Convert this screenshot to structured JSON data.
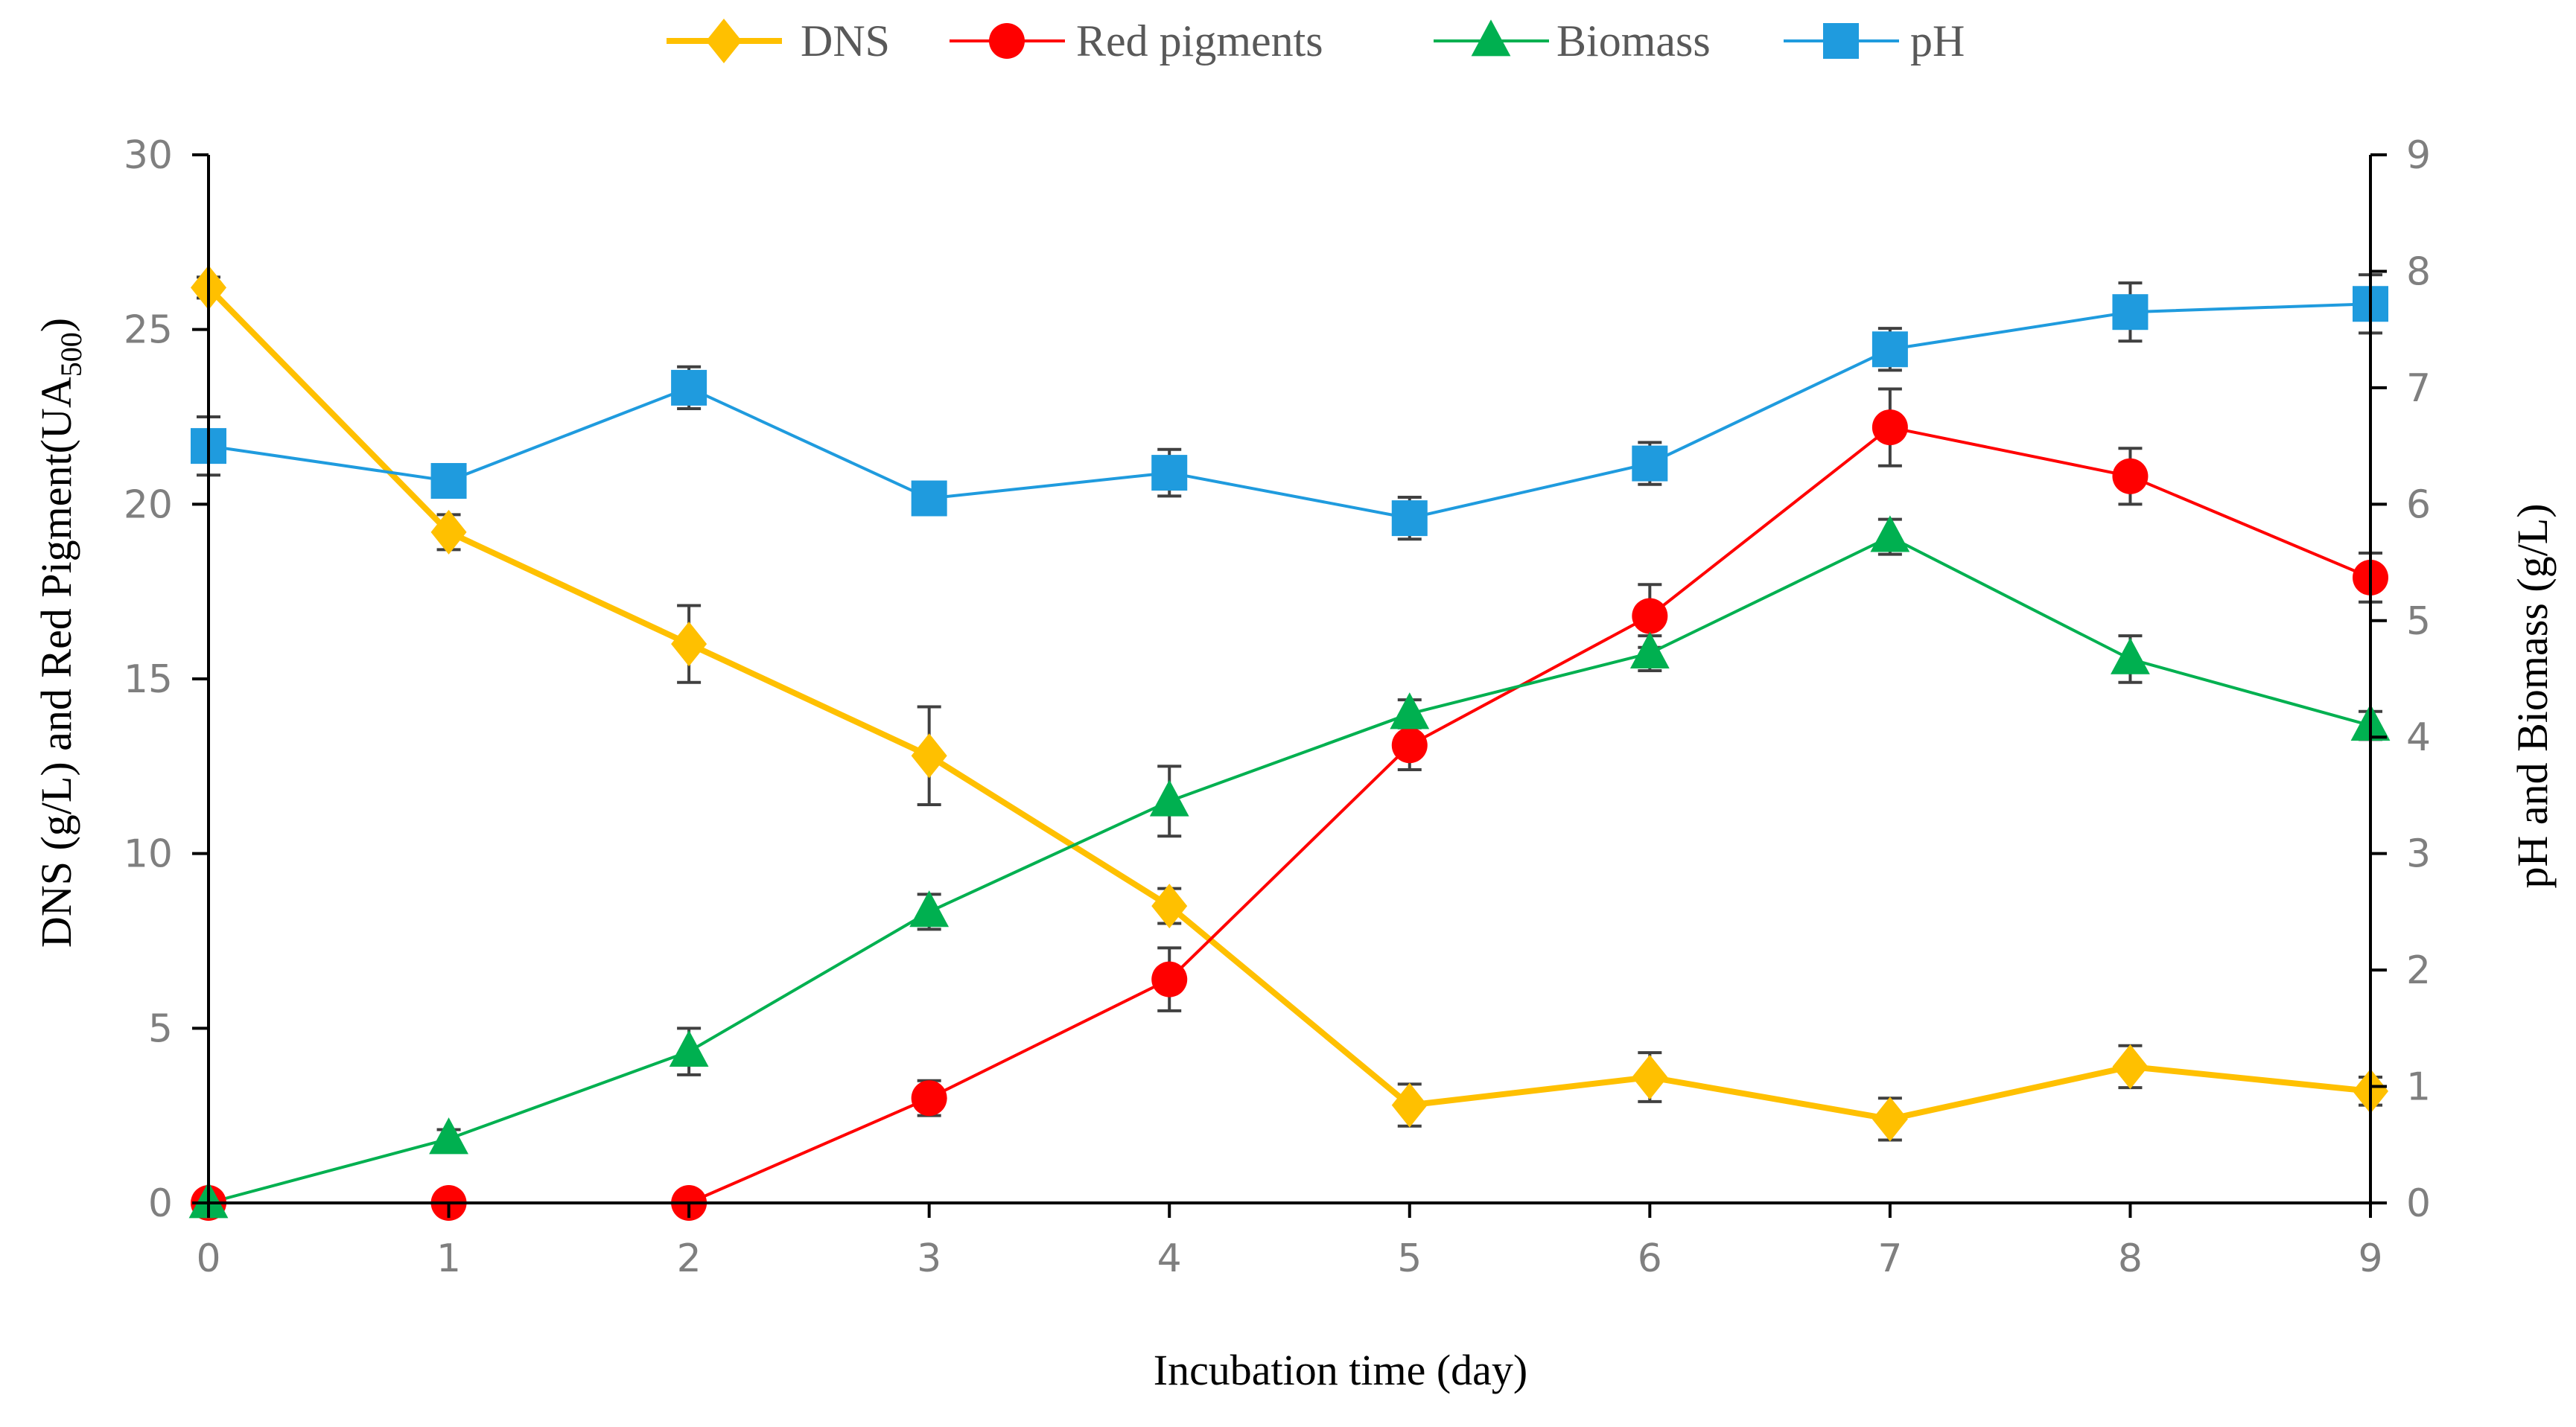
{
  "chart_data": {
    "type": "line",
    "title": "",
    "xlabel": "Incubation time (day)",
    "ylabel_left_main": "DNS (g/L) and Red Pigment(UA",
    "ylabel_left_sub": "500",
    "ylabel_left_end": ")",
    "ylabel_right": "pH and Biomass (g/L)",
    "x": [
      0,
      1,
      2,
      3,
      4,
      5,
      6,
      7,
      8,
      9
    ],
    "x_ticks": [
      "0",
      "1",
      "2",
      "3",
      "4",
      "5",
      "6",
      "7",
      "8",
      "9"
    ],
    "y_left_ticks": [
      "0",
      "5",
      "10",
      "15",
      "20",
      "25",
      "30"
    ],
    "y_right_ticks": [
      "0",
      "1",
      "2",
      "3",
      "4",
      "5",
      "6",
      "7",
      "8",
      "9"
    ],
    "y_left_lim": [
      0,
      30
    ],
    "y_right_lim": [
      0,
      9
    ],
    "grid": false,
    "legend_position": "top",
    "series": [
      {
        "name": "DNS",
        "axis": "left",
        "color": "#FFC000",
        "marker": "diamond",
        "values": [
          26.2,
          19.2,
          16.0,
          12.8,
          8.5,
          2.8,
          3.6,
          2.4,
          3.9,
          3.2
        ],
        "errors": [
          0.3,
          0.5,
          1.1,
          1.4,
          0.5,
          0.6,
          0.7,
          0.6,
          0.6,
          0.4
        ]
      },
      {
        "name": "Red pigments",
        "axis": "left",
        "color": "#FF0000",
        "marker": "circle",
        "values": [
          0,
          0,
          0,
          3.0,
          6.4,
          13.1,
          16.8,
          22.2,
          20.8,
          17.9
        ],
        "errors": [
          0,
          0,
          0,
          0.5,
          0.9,
          0.7,
          0.9,
          1.1,
          0.8,
          0.7
        ]
      },
      {
        "name": "Biomass",
        "axis": "right",
        "color": "#00B050",
        "marker": "triangle",
        "values": [
          0,
          0.55,
          1.3,
          2.5,
          3.45,
          4.2,
          4.72,
          5.72,
          4.67,
          4.1
        ],
        "errors": [
          0,
          0.08,
          0.2,
          0.15,
          0.3,
          0.12,
          0.15,
          0.15,
          0.2,
          0.12
        ]
      },
      {
        "name": "pH",
        "axis": "right",
        "color": "#1F9BDE",
        "marker": "square",
        "values": [
          6.5,
          6.2,
          7.0,
          6.05,
          6.27,
          5.88,
          6.35,
          7.33,
          7.65,
          7.72
        ],
        "errors": [
          0.25,
          0.0,
          0.18,
          0.0,
          0.2,
          0.18,
          0.18,
          0.18,
          0.25,
          0.25
        ]
      }
    ]
  }
}
